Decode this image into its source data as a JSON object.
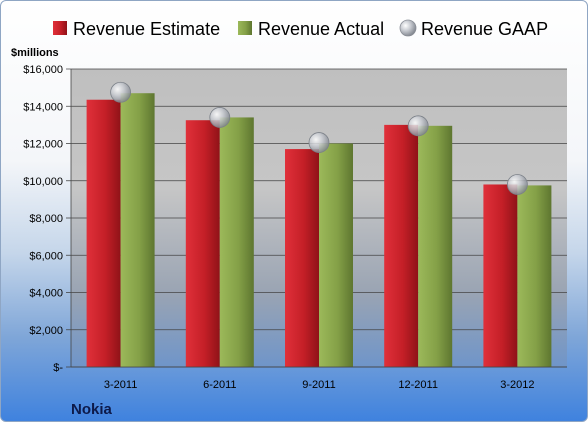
{
  "chart_data": {
    "type": "bar",
    "title": "",
    "company": "Nokia",
    "ylabel": "$millions",
    "categories": [
      "3-2011",
      "6-2011",
      "9-2011",
      "12-2011",
      "3-2012"
    ],
    "series": [
      {
        "name": "Revenue Estimate",
        "kind": "bar",
        "color": "#cc2027",
        "values": [
          14350,
          13250,
          11700,
          13000,
          9800
        ]
      },
      {
        "name": "Revenue Actual",
        "kind": "bar",
        "color": "#86a24a",
        "values": [
          14700,
          13400,
          12000,
          12950,
          9750
        ]
      },
      {
        "name": "Revenue GAAP",
        "kind": "marker",
        "color": "#b8bcc4",
        "values": [
          14750,
          13400,
          12050,
          12950,
          9800
        ]
      }
    ],
    "ylim": [
      0,
      16000
    ],
    "yticks": [
      0,
      2000,
      4000,
      6000,
      8000,
      10000,
      12000,
      14000,
      16000
    ],
    "ytick_labels": [
      "$-",
      "$2,000",
      "$4,000",
      "$6,000",
      "$8,000",
      "$10,000",
      "$12,000",
      "$14,000",
      "$16,000"
    ],
    "grid": true,
    "legend": "top"
  }
}
